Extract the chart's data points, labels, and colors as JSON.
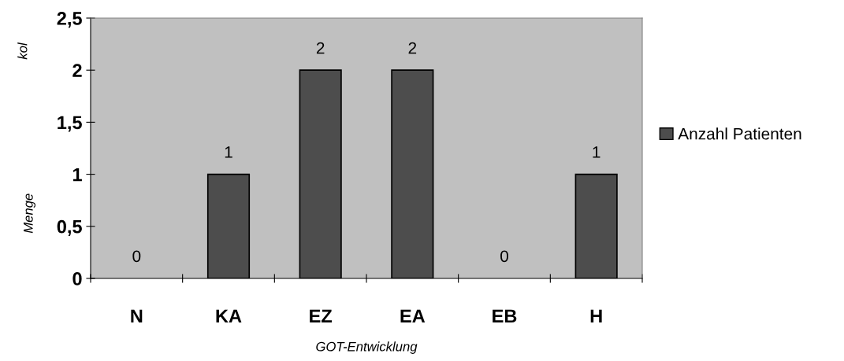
{
  "chart_data": {
    "type": "bar",
    "xlabel": "GOT-Entwicklung",
    "ylabel": "Menge",
    "annotations": [
      "kol"
    ],
    "categories": [
      "N",
      "KA",
      "EZ",
      "EA",
      "EB",
      "H"
    ],
    "series": [
      {
        "name": "Anzahl Patienten",
        "color": "#4d4d4d",
        "values": [
          0,
          1,
          2,
          2,
          0,
          1
        ]
      }
    ],
    "ylim": [
      0,
      2.5
    ],
    "yticks": [
      0,
      {
        "value": 0.5,
        "label": "0,5"
      },
      1,
      {
        "value": 1.5,
        "label": "1,5"
      },
      2,
      {
        "value": 2.5,
        "label": "2,5"
      }
    ],
    "data_labels": true,
    "legend": "right",
    "grid": false
  }
}
